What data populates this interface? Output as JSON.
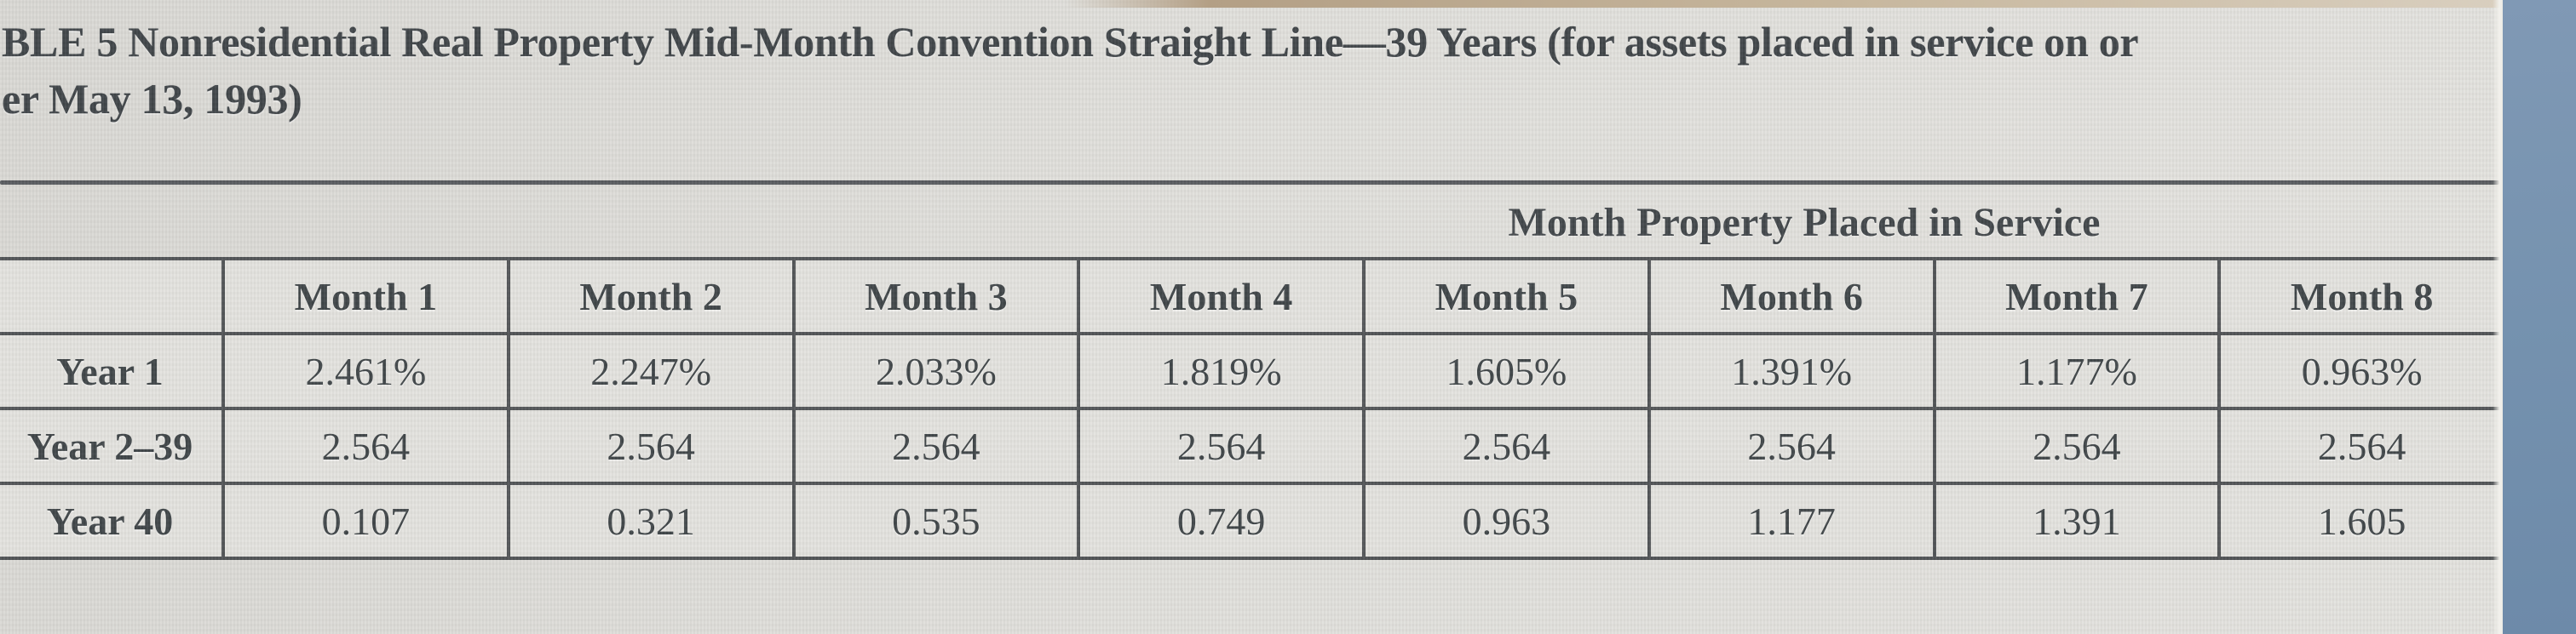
{
  "title": {
    "line1": "BLE 5 Nonresidential Real Property Mid-Month Convention Straight Line—39 Years (for assets placed in service on or",
    "line2": "er May 13, 1993)"
  },
  "table": {
    "span_header": "Month Property Placed in Service",
    "columns": [
      "Month 1",
      "Month 2",
      "Month 3",
      "Month 4",
      "Month 5",
      "Month 6",
      "Month 7",
      "Month 8"
    ],
    "rows": [
      {
        "label": "Year 1",
        "values": [
          "2.461%",
          "2.247%",
          "2.033%",
          "1.819%",
          "1.605%",
          "1.391%",
          "1.177%",
          "0.963%"
        ]
      },
      {
        "label": "Year 2–39",
        "values": [
          "2.564",
          "2.564",
          "2.564",
          "2.564",
          "2.564",
          "2.564",
          "2.564",
          "2.564"
        ]
      },
      {
        "label": "Year 40",
        "values": [
          "0.107",
          "0.321",
          "0.535",
          "0.749",
          "0.963",
          "1.177",
          "1.391",
          "1.605"
        ]
      }
    ]
  },
  "chart_data": {
    "type": "table",
    "title": "Nonresidential Real Property Mid-Month Convention Straight Line—39 Years",
    "categories": [
      "Month 1",
      "Month 2",
      "Month 3",
      "Month 4",
      "Month 5",
      "Month 6",
      "Month 7",
      "Month 8"
    ],
    "series": [
      {
        "name": "Year 1 (%)",
        "values": [
          2.461,
          2.247,
          2.033,
          1.819,
          1.605,
          1.391,
          1.177,
          0.963
        ]
      },
      {
        "name": "Year 2–39 (%)",
        "values": [
          2.564,
          2.564,
          2.564,
          2.564,
          2.564,
          2.564,
          2.564,
          2.564
        ]
      },
      {
        "name": "Year 40 (%)",
        "values": [
          0.107,
          0.321,
          0.535,
          0.749,
          0.963,
          1.177,
          1.391,
          1.605
        ]
      }
    ]
  },
  "colors": {
    "page_bg": "#dfdeda",
    "cell_bg": "#e3e2de",
    "grid_line": "#4e5154",
    "text": "#3c4245",
    "side_band_blue": "#7592ae",
    "top_strip_tan": "#c7b79e"
  }
}
